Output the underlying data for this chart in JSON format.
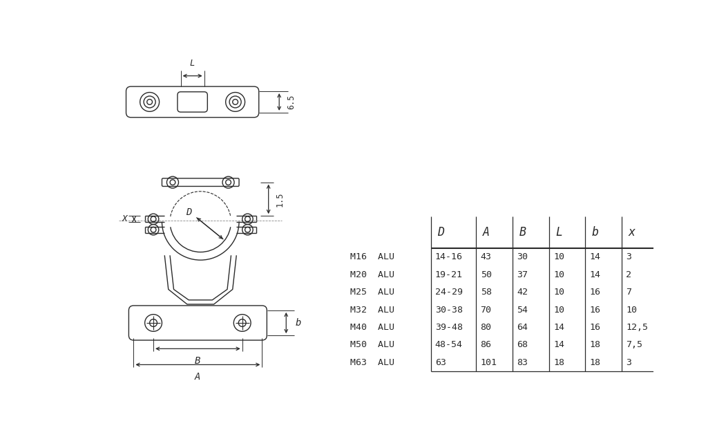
{
  "table_headers": [
    "",
    "D",
    "A",
    "B",
    "L",
    "b",
    "x"
  ],
  "table_rows": [
    [
      "M16  ALU",
      "14-16",
      "43",
      "30",
      "10",
      "14",
      "3"
    ],
    [
      "M20  ALU",
      "19-21",
      "50",
      "37",
      "10",
      "14",
      "2"
    ],
    [
      "M25  ALU",
      "24-29",
      "58",
      "42",
      "10",
      "16",
      "7"
    ],
    [
      "M32  ALU",
      "30-38",
      "70",
      "54",
      "10",
      "16",
      "10"
    ],
    [
      "M40  ALU",
      "39-48",
      "80",
      "64",
      "14",
      "16",
      "12,5"
    ],
    [
      "M50  ALU",
      "48-54",
      "86",
      "68",
      "14",
      "18",
      "7,5"
    ],
    [
      "M63  ALU",
      "63",
      "101",
      "83",
      "18",
      "18",
      "3"
    ]
  ],
  "bg_color": "#ffffff",
  "line_color": "#2a2a2a",
  "text_color": "#2a2a2a"
}
